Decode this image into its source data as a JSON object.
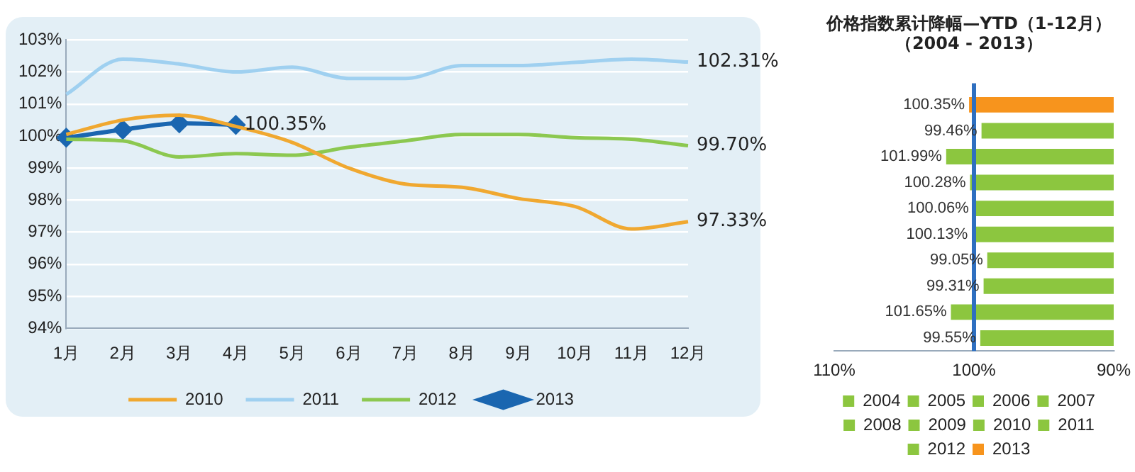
{
  "chart_data": [
    {
      "type": "line",
      "categories": [
        "1月",
        "2月",
        "3月",
        "4月",
        "5月",
        "6月",
        "7月",
        "8月",
        "9月",
        "10月",
        "11月",
        "12月"
      ],
      "series": [
        {
          "name": "2010",
          "color": "#f0a830",
          "marker": "none",
          "values": [
            100.05,
            100.5,
            100.65,
            100.3,
            99.8,
            99.0,
            98.5,
            98.4,
            98.05,
            97.8,
            97.1,
            97.33
          ]
        },
        {
          "name": "2011",
          "color": "#9fd0f0",
          "marker": "none",
          "values": [
            101.3,
            102.4,
            102.25,
            102.0,
            102.15,
            101.8,
            101.8,
            102.2,
            102.2,
            102.3,
            102.4,
            102.31
          ]
        },
        {
          "name": "2012",
          "color": "#8cc850",
          "marker": "none",
          "values": [
            99.9,
            99.85,
            99.35,
            99.45,
            99.4,
            99.65,
            99.85,
            100.05,
            100.05,
            99.95,
            99.9,
            99.7
          ]
        },
        {
          "name": "2013",
          "color": "#1a66b0",
          "marker": "diamond",
          "values": [
            99.95,
            100.2,
            100.4,
            100.35,
            null,
            null,
            null,
            null,
            null,
            null,
            null,
            null
          ]
        }
      ],
      "ylim": [
        94,
        103
      ],
      "yticks": [
        {
          "value": 94,
          "label": "94%"
        },
        {
          "value": 95,
          "label": "95%"
        },
        {
          "value": 96,
          "label": "96%"
        },
        {
          "value": 97,
          "label": "97%"
        },
        {
          "value": 98,
          "label": "98%"
        },
        {
          "value": 99,
          "label": "99%"
        },
        {
          "value": 100,
          "label": "100%"
        },
        {
          "value": 101,
          "label": "101%"
        },
        {
          "value": 102,
          "label": "102%"
        },
        {
          "value": 103,
          "label": "103%"
        }
      ],
      "grid": "y",
      "legend": "bottom",
      "annotations": [
        {
          "text": "102.31%",
          "x": "12月",
          "y": 102.31
        },
        {
          "text": "99.70%",
          "x": "12月",
          "y": 99.7
        },
        {
          "text": "97.33%",
          "x": "12月",
          "y": 97.33
        },
        {
          "text": "100.35%",
          "x": "4月",
          "y": 100.35
        }
      ]
    },
    {
      "type": "bar",
      "orientation": "horizontal",
      "title": "价格指数累计降幅—YTD（1-12月）",
      "subtitle": "（2004 - 2013）",
      "categories": [
        null,
        null,
        null,
        null,
        null,
        null,
        null,
        null,
        null,
        null
      ],
      "series": [
        {
          "name": "2004",
          "color": "#8cc63f",
          "values": [
            null,
            null,
            null,
            null,
            null,
            null,
            null,
            null,
            null,
            99.55
          ],
          "value_labels": [
            null,
            null,
            null,
            null,
            null,
            null,
            null,
            null,
            null,
            "99.55%"
          ]
        },
        {
          "name": "2005",
          "color": "#8cc63f",
          "values": [
            null,
            null,
            null,
            null,
            null,
            null,
            null,
            null,
            101.65,
            null
          ],
          "value_labels": [
            null,
            null,
            null,
            null,
            null,
            null,
            null,
            null,
            "101.65%",
            null
          ]
        },
        {
          "name": "2006",
          "color": "#8cc63f",
          "values": [
            null,
            null,
            null,
            null,
            null,
            null,
            null,
            99.31,
            null,
            null
          ],
          "value_labels": [
            null,
            null,
            null,
            null,
            null,
            null,
            null,
            "99.31%",
            null,
            null
          ]
        },
        {
          "name": "2007",
          "color": "#8cc63f",
          "values": [
            null,
            null,
            null,
            null,
            null,
            null,
            99.05,
            null,
            null,
            null
          ],
          "value_labels": [
            null,
            null,
            null,
            null,
            null,
            null,
            "99.05%",
            null,
            null,
            null
          ]
        },
        {
          "name": "2008",
          "color": "#8cc63f",
          "values": [
            null,
            null,
            null,
            null,
            null,
            100.13,
            null,
            null,
            null,
            null
          ],
          "value_labels": [
            null,
            null,
            null,
            null,
            null,
            "100.13%",
            null,
            null,
            null,
            null
          ]
        },
        {
          "name": "2009",
          "color": "#8cc63f",
          "values": [
            null,
            null,
            null,
            null,
            100.06,
            null,
            null,
            null,
            null,
            null
          ],
          "value_labels": [
            null,
            null,
            null,
            null,
            "100.06%",
            null,
            null,
            null,
            null,
            null
          ]
        },
        {
          "name": "2010",
          "color": "#8cc63f",
          "values": [
            null,
            null,
            null,
            100.28,
            null,
            null,
            null,
            null,
            null,
            null
          ],
          "value_labels": [
            null,
            null,
            null,
            "100.28%",
            null,
            null,
            null,
            null,
            null,
            null
          ]
        },
        {
          "name": "2011",
          "color": "#8cc63f",
          "values": [
            null,
            null,
            101.99,
            null,
            null,
            null,
            null,
            null,
            null,
            null
          ],
          "value_labels": [
            null,
            null,
            "101.99%",
            null,
            null,
            null,
            null,
            null,
            null,
            null
          ]
        },
        {
          "name": "2012",
          "color": "#8cc63f",
          "values": [
            null,
            99.46,
            null,
            null,
            null,
            null,
            null,
            null,
            null,
            null
          ],
          "value_labels": [
            null,
            "99.46%",
            null,
            null,
            null,
            null,
            null,
            null,
            null,
            null
          ]
        },
        {
          "name": "2013",
          "color": "#f7941d",
          "values": [
            100.35,
            null,
            null,
            null,
            null,
            null,
            null,
            null,
            null,
            null
          ],
          "value_labels": [
            "100.35%",
            null,
            null,
            null,
            null,
            null,
            null,
            null,
            null,
            null
          ]
        }
      ],
      "xlim": [
        110,
        90
      ],
      "xticks": [
        {
          "value": 110,
          "label": "110%"
        },
        {
          "value": 100,
          "label": "100%"
        },
        {
          "value": 90,
          "label": "90%"
        }
      ],
      "ref_lines": [
        {
          "axis": "x",
          "value": 100,
          "color": "#2e6fc0"
        }
      ],
      "grid": false,
      "legend": "bottom",
      "tick_labels": "x"
    }
  ]
}
